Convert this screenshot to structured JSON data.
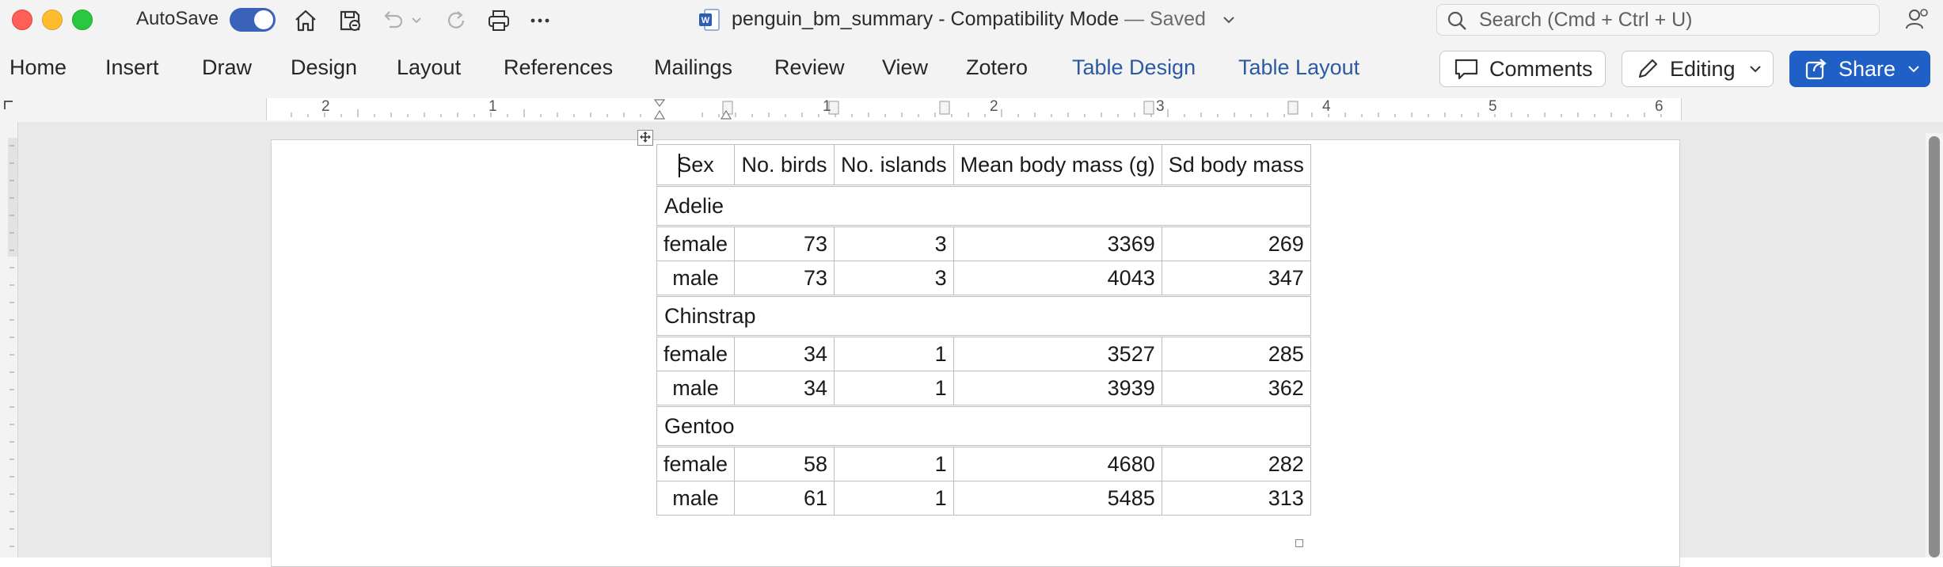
{
  "window": {
    "autosave_label": "AutoSave",
    "autosave_on": true,
    "doc_name": "penguin_bm_summary",
    "separator": " - ",
    "mode": "Compatibility Mode",
    "saved_status": "— Saved",
    "search_placeholder": "Search (Cmd + Ctrl + U)"
  },
  "ribbon": {
    "tabs": [
      "Home",
      "Insert",
      "Draw",
      "Design",
      "Layout",
      "References",
      "Mailings",
      "Review",
      "View",
      "Zotero",
      "Table Design",
      "Table Layout"
    ],
    "comments_label": "Comments",
    "editing_label": "Editing",
    "share_label": "Share"
  },
  "ruler": {
    "numbers": [
      "2",
      "1",
      "1",
      "2",
      "3",
      "4",
      "5",
      "6"
    ]
  },
  "table": {
    "headers": [
      "Sex",
      "No. birds",
      "No. islands",
      "Mean body mass (g)",
      "Sd body mass"
    ],
    "groups": [
      {
        "name": "Adelie",
        "rows": [
          [
            "female",
            "73",
            "3",
            "3369",
            "269"
          ],
          [
            "male",
            "73",
            "3",
            "4043",
            "347"
          ]
        ]
      },
      {
        "name": "Chinstrap",
        "rows": [
          [
            "female",
            "34",
            "1",
            "3527",
            "285"
          ],
          [
            "male",
            "34",
            "1",
            "3939",
            "362"
          ]
        ]
      },
      {
        "name": "Gentoo",
        "rows": [
          [
            "female",
            "58",
            "1",
            "4680",
            "282"
          ],
          [
            "male",
            "61",
            "1",
            "5485",
            "313"
          ]
        ]
      }
    ]
  },
  "colors": {
    "accent_blue": "#1f5fc6",
    "tab_blue": "#2c5aa0",
    "toggle_blue": "#3b62b9"
  }
}
